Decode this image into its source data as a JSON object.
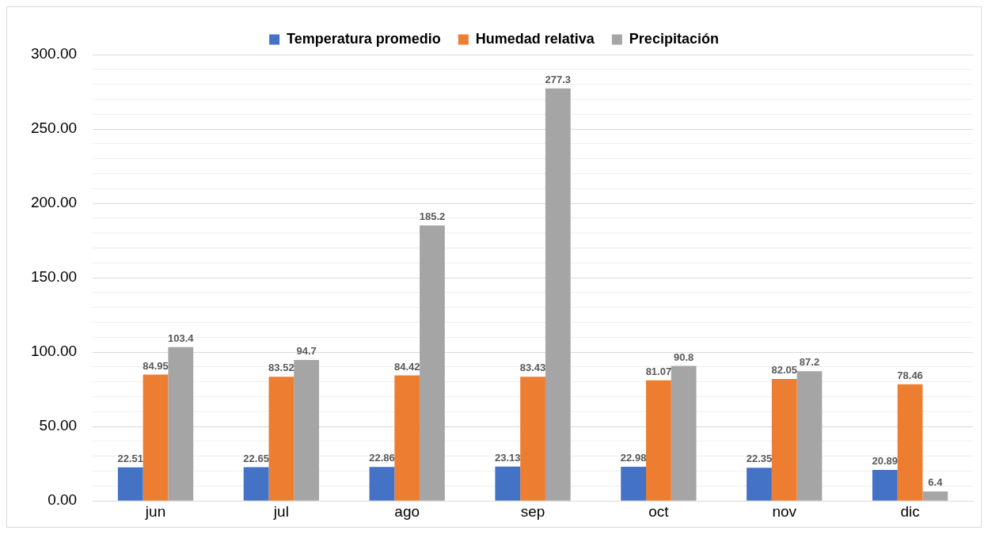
{
  "chart_data": {
    "type": "bar",
    "categories": [
      "jun",
      "jul",
      "ago",
      "sep",
      "oct",
      "nov",
      "dic"
    ],
    "series": [
      {
        "name": "Temperatura promedio",
        "color": "#4472c4",
        "values": [
          22.51,
          22.65,
          22.86,
          23.13,
          22.98,
          22.35,
          20.89
        ]
      },
      {
        "name": "Humedad relativa",
        "color": "#ed7d31",
        "values": [
          84.95,
          83.52,
          84.42,
          83.43,
          81.07,
          82.05,
          78.46
        ]
      },
      {
        "name": "Precipitación",
        "color": "#a5a5a5",
        "values": [
          103.4,
          94.7,
          185.2,
          277.3,
          90.8,
          87.2,
          6.4
        ]
      }
    ],
    "ylim": [
      0,
      300
    ],
    "yticks": [
      {
        "value": 0,
        "label": "0.00"
      },
      {
        "value": 10,
        "label": null
      },
      {
        "value": 20,
        "label": null
      },
      {
        "value": 30,
        "label": null
      },
      {
        "value": 40,
        "label": null
      },
      {
        "value": 50,
        "label": "50.00"
      },
      {
        "value": 60,
        "label": null
      },
      {
        "value": 70,
        "label": null
      },
      {
        "value": 80,
        "label": null
      },
      {
        "value": 90,
        "label": null
      },
      {
        "value": 100,
        "label": "100.00"
      },
      {
        "value": 110,
        "label": null
      },
      {
        "value": 120,
        "label": null
      },
      {
        "value": 130,
        "label": null
      },
      {
        "value": 140,
        "label": null
      },
      {
        "value": 150,
        "label": "150.00"
      },
      {
        "value": 160,
        "label": null
      },
      {
        "value": 170,
        "label": null
      },
      {
        "value": 180,
        "label": null
      },
      {
        "value": 190,
        "label": null
      },
      {
        "value": 200,
        "label": "200.00"
      },
      {
        "value": 210,
        "label": null
      },
      {
        "value": 220,
        "label": null
      },
      {
        "value": 230,
        "label": null
      },
      {
        "value": 240,
        "label": null
      },
      {
        "value": 250,
        "label": "250.00"
      },
      {
        "value": 260,
        "label": null
      },
      {
        "value": 270,
        "label": null
      },
      {
        "value": 280,
        "label": null
      },
      {
        "value": 290,
        "label": null
      },
      {
        "value": 300,
        "label": "300.00"
      }
    ],
    "grid": "y",
    "legend": "top",
    "data_labels": true
  }
}
